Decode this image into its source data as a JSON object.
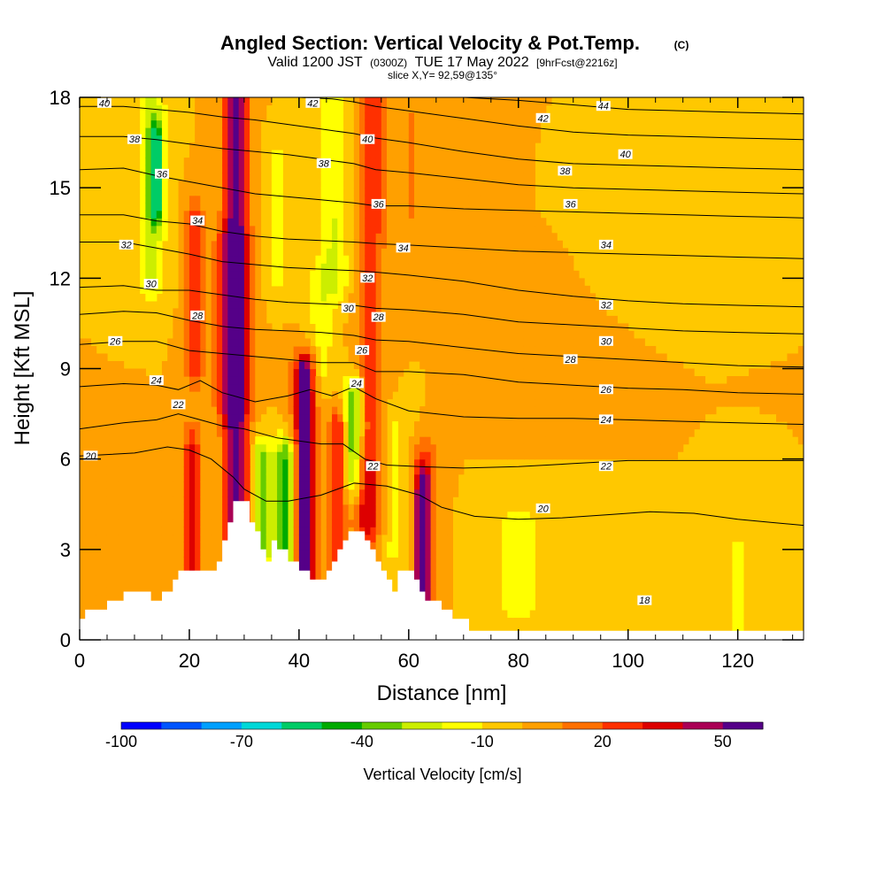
{
  "chart_data": {
    "type": "heatmap",
    "title": "Angled Section: Vertical Velocity & Pot.Temp.",
    "title_units": "(C)",
    "subtitle": {
      "valid_prefix": "Valid 1200 JST",
      "utc": "(0300Z)",
      "date": "TUE 17 May 2022",
      "fcst": "[9hrFcst@2216z]"
    },
    "slice": "slice X,Y= 92,59@135°",
    "xlabel": "Distance [nm]",
    "ylabel": "Height [Kft MSL]",
    "xlim": [
      0,
      132
    ],
    "ylim": [
      0,
      18
    ],
    "x_ticks": [
      0,
      20,
      40,
      60,
      80,
      100,
      120
    ],
    "y_ticks": [
      0,
      3,
      6,
      9,
      12,
      15,
      18
    ],
    "colorbar": {
      "title": "Vertical Velocity [cm/s]",
      "tick_labels": [
        "-100",
        "-70",
        "-40",
        "-10",
        "20",
        "50"
      ],
      "colors": [
        "#0000ff",
        "#0055ff",
        "#00a0ff",
        "#00d8d8",
        "#00cc66",
        "#00aa00",
        "#66cc00",
        "#ccee00",
        "#ffff00",
        "#ffc800",
        "#ffa000",
        "#ff7000",
        "#ff3000",
        "#dd0000",
        "#aa0055",
        "#550088"
      ]
    },
    "terrain_nm_kft": [
      [
        0,
        0.7
      ],
      [
        1,
        0.7
      ],
      [
        1,
        1
      ],
      [
        5,
        1
      ],
      [
        5,
        1.3
      ],
      [
        8,
        1.3
      ],
      [
        8,
        1.6
      ],
      [
        13,
        1.6
      ],
      [
        13,
        1.3
      ],
      [
        15,
        1.3
      ],
      [
        15,
        1.6
      ],
      [
        17,
        1.6
      ],
      [
        17,
        2
      ],
      [
        18,
        2
      ],
      [
        18,
        2.3
      ],
      [
        25,
        2.3
      ],
      [
        25,
        2.6
      ],
      [
        26,
        2.6
      ],
      [
        26,
        3.3
      ],
      [
        27,
        3.3
      ],
      [
        27,
        3.9
      ],
      [
        28,
        3.9
      ],
      [
        28,
        4.6
      ],
      [
        31,
        4.6
      ],
      [
        31,
        3.9
      ],
      [
        32,
        3.9
      ],
      [
        32,
        3.6
      ],
      [
        33,
        3.6
      ],
      [
        33,
        3
      ],
      [
        34,
        3
      ],
      [
        34,
        2.6
      ],
      [
        35,
        2.6
      ],
      [
        35,
        3.3
      ],
      [
        36,
        3.3
      ],
      [
        36,
        3
      ],
      [
        38,
        3
      ],
      [
        38,
        2.6
      ],
      [
        40,
        2.6
      ],
      [
        40,
        2.3
      ],
      [
        42,
        2.3
      ],
      [
        42,
        2
      ],
      [
        45,
        2
      ],
      [
        45,
        2.3
      ],
      [
        46,
        2.3
      ],
      [
        46,
        2.6
      ],
      [
        47,
        2.6
      ],
      [
        47,
        3
      ],
      [
        48,
        3
      ],
      [
        48,
        3.3
      ],
      [
        49,
        3.3
      ],
      [
        49,
        3.6
      ],
      [
        52,
        3.6
      ],
      [
        52,
        3.3
      ],
      [
        53,
        3.3
      ],
      [
        53,
        3
      ],
      [
        54,
        3
      ],
      [
        54,
        2.6
      ],
      [
        55,
        2.6
      ],
      [
        55,
        2.3
      ],
      [
        56,
        2.3
      ],
      [
        56,
        2
      ],
      [
        57,
        2
      ],
      [
        57,
        1.6
      ],
      [
        58,
        1.6
      ],
      [
        58,
        2.3
      ],
      [
        61,
        2.3
      ],
      [
        61,
        2
      ],
      [
        62,
        2
      ],
      [
        62,
        1.6
      ],
      [
        63,
        1.6
      ],
      [
        63,
        1.3
      ],
      [
        66,
        1.3
      ],
      [
        66,
        1
      ],
      [
        68,
        1
      ],
      [
        68,
        0.7
      ],
      [
        71,
        0.7
      ],
      [
        71,
        0.3
      ],
      [
        132,
        0.3
      ]
    ],
    "theta_contours_c": [
      {
        "level": 20,
        "label": "20",
        "x": [
          0,
          10,
          16,
          20,
          24,
          28,
          30,
          34,
          38,
          44,
          50,
          56,
          62,
          66,
          72,
          80,
          88,
          96,
          104,
          112,
          120,
          126,
          132
        ],
        "y": [
          6.1,
          6.2,
          6.4,
          6.3,
          6.0,
          5.4,
          5.0,
          4.6,
          4.6,
          4.8,
          5.2,
          5.1,
          4.8,
          4.4,
          4.1,
          4.0,
          4.05,
          4.15,
          4.25,
          4.2,
          4.0,
          3.9,
          3.8
        ]
      },
      {
        "level": 22,
        "label": "22",
        "x": [
          0,
          8,
          14,
          18,
          22,
          26,
          30,
          36,
          40,
          44,
          48,
          52,
          56,
          62,
          70,
          80,
          90,
          100,
          110,
          120,
          132
        ],
        "y": [
          7.0,
          7.2,
          7.3,
          7.5,
          7.3,
          7.1,
          7.0,
          6.7,
          6.6,
          6.5,
          6.5,
          6.0,
          5.8,
          5.75,
          5.7,
          5.75,
          5.85,
          5.95,
          5.95,
          5.95,
          5.95
        ]
      },
      {
        "level": 24,
        "label": "24",
        "x": [
          0,
          8,
          14,
          18,
          22,
          26,
          32,
          38,
          42,
          46,
          50,
          54,
          60,
          70,
          80,
          90,
          100,
          110,
          120,
          132
        ],
        "y": [
          8.4,
          8.5,
          8.45,
          8.3,
          8.6,
          8.2,
          7.9,
          8.1,
          8.3,
          8.1,
          8.4,
          8.0,
          7.6,
          7.4,
          7.35,
          7.35,
          7.3,
          7.25,
          7.2,
          7.15
        ]
      },
      {
        "level": 26,
        "label": "26",
        "x": [
          0,
          8,
          14,
          20,
          26,
          32,
          38,
          44,
          50,
          54,
          60,
          70,
          80,
          90,
          100,
          110,
          120,
          132
        ],
        "y": [
          9.8,
          9.9,
          9.9,
          9.6,
          9.5,
          9.4,
          9.3,
          9.2,
          9.2,
          8.9,
          8.9,
          8.8,
          8.55,
          8.45,
          8.35,
          8.3,
          8.2,
          8.15
        ]
      },
      {
        "level": 28,
        "label": "28",
        "x": [
          0,
          8,
          14,
          20,
          26,
          32,
          38,
          44,
          50,
          54,
          60,
          70,
          80,
          90,
          100,
          110,
          120,
          132
        ],
        "y": [
          10.8,
          10.9,
          10.85,
          10.6,
          10.4,
          10.3,
          10.25,
          10.2,
          10.1,
          9.95,
          9.9,
          9.7,
          9.5,
          9.4,
          9.3,
          9.2,
          9.1,
          9.05
        ]
      },
      {
        "level": 30,
        "label": "30",
        "x": [
          0,
          8,
          14,
          20,
          26,
          32,
          38,
          44,
          50,
          54,
          60,
          70,
          80,
          90,
          100,
          110,
          120,
          132
        ],
        "y": [
          11.7,
          11.75,
          11.6,
          11.6,
          11.45,
          11.3,
          11.2,
          11.15,
          11.1,
          11.0,
          10.95,
          10.8,
          10.55,
          10.45,
          10.35,
          10.25,
          10.2,
          10.15
        ]
      },
      {
        "level": 32,
        "label": "32",
        "x": [
          0,
          8,
          14,
          20,
          26,
          32,
          38,
          44,
          50,
          54,
          60,
          70,
          80,
          90,
          100,
          110,
          120,
          132
        ],
        "y": [
          13.2,
          13.2,
          13.0,
          12.8,
          12.55,
          12.45,
          12.35,
          12.3,
          12.25,
          12.2,
          12.1,
          11.9,
          11.6,
          11.4,
          11.25,
          11.15,
          11.1,
          11.05
        ]
      },
      {
        "level": 34,
        "label": "34",
        "x": [
          0,
          8,
          14,
          20,
          26,
          32,
          38,
          44,
          50,
          54,
          60,
          70,
          80,
          90,
          100,
          110,
          120,
          132
        ],
        "y": [
          14.1,
          14.1,
          13.9,
          13.8,
          13.55,
          13.4,
          13.3,
          13.25,
          13.2,
          13.15,
          13.1,
          13.0,
          12.9,
          12.85,
          12.8,
          12.75,
          12.7,
          12.65
        ]
      },
      {
        "level": 36,
        "label": "36",
        "x": [
          0,
          8,
          14,
          20,
          26,
          32,
          38,
          44,
          50,
          54,
          60,
          70,
          80,
          90,
          100,
          110,
          120,
          132
        ],
        "y": [
          15.6,
          15.65,
          15.4,
          15.2,
          15.0,
          14.8,
          14.7,
          14.6,
          14.5,
          14.4,
          14.4,
          14.3,
          14.25,
          14.2,
          14.15,
          14.1,
          14.05,
          14.0
        ]
      },
      {
        "level": 38,
        "label": "38",
        "x": [
          0,
          8,
          14,
          20,
          26,
          32,
          38,
          44,
          50,
          54,
          60,
          70,
          80,
          90,
          100,
          110,
          120,
          132
        ],
        "y": [
          16.7,
          16.7,
          16.6,
          16.45,
          16.3,
          16.2,
          16.1,
          15.95,
          15.8,
          15.6,
          15.5,
          15.3,
          15.1,
          15.0,
          14.95,
          14.9,
          14.85,
          14.8
        ]
      },
      {
        "level": 40,
        "label": "40",
        "x": [
          0,
          8,
          14,
          20,
          26,
          32,
          38,
          44,
          50,
          54,
          60,
          70,
          80,
          90,
          100,
          110,
          120,
          132
        ],
        "y": [
          17.7,
          17.7,
          17.6,
          17.5,
          17.35,
          17.25,
          17.1,
          16.95,
          16.8,
          16.65,
          16.5,
          16.2,
          15.95,
          15.8,
          15.75,
          15.7,
          15.65,
          15.6
        ]
      },
      {
        "level": 42,
        "label": "42",
        "x": [
          40,
          46,
          50,
          54,
          60,
          70,
          80,
          90,
          100,
          110,
          120,
          132
        ],
        "y": [
          18.0,
          17.95,
          17.85,
          17.7,
          17.55,
          17.3,
          17.05,
          16.85,
          16.75,
          16.7,
          16.65,
          16.6
        ]
      },
      {
        "level": 44,
        "label": "44",
        "x": [
          70,
          80,
          90,
          100,
          110,
          120,
          132
        ],
        "y": [
          18.0,
          17.9,
          17.75,
          17.6,
          17.55,
          17.5,
          17.45
        ]
      }
    ],
    "contour_labels": [
      {
        "text": "40",
        "x": 4.5,
        "y": 17.8
      },
      {
        "text": "42",
        "x": 42.5,
        "y": 17.8
      },
      {
        "text": "44",
        "x": 95.5,
        "y": 17.7
      },
      {
        "text": "42",
        "x": 84.5,
        "y": 17.3
      },
      {
        "text": "38",
        "x": 10,
        "y": 16.6
      },
      {
        "text": "40",
        "x": 52.5,
        "y": 16.6
      },
      {
        "text": "40",
        "x": 99.5,
        "y": 16.1
      },
      {
        "text": "38",
        "x": 44.5,
        "y": 15.8
      },
      {
        "text": "38",
        "x": 88.5,
        "y": 15.55
      },
      {
        "text": "36",
        "x": 15,
        "y": 15.45
      },
      {
        "text": "36",
        "x": 54.5,
        "y": 14.45
      },
      {
        "text": "36",
        "x": 89.5,
        "y": 14.45
      },
      {
        "text": "34",
        "x": 21.5,
        "y": 13.9
      },
      {
        "text": "32",
        "x": 8.5,
        "y": 13.1
      },
      {
        "text": "34",
        "x": 59,
        "y": 13.0
      },
      {
        "text": "34",
        "x": 96,
        "y": 13.1
      },
      {
        "text": "30",
        "x": 13,
        "y": 11.8
      },
      {
        "text": "32",
        "x": 52.5,
        "y": 12.0
      },
      {
        "text": "30",
        "x": 49,
        "y": 11.0
      },
      {
        "text": "32",
        "x": 96,
        "y": 11.1
      },
      {
        "text": "28",
        "x": 21.5,
        "y": 10.75
      },
      {
        "text": "28",
        "x": 54.5,
        "y": 10.7
      },
      {
        "text": "26",
        "x": 6.5,
        "y": 9.9
      },
      {
        "text": "26",
        "x": 51.5,
        "y": 9.6
      },
      {
        "text": "30",
        "x": 96,
        "y": 9.9
      },
      {
        "text": "28",
        "x": 89.5,
        "y": 9.3
      },
      {
        "text": "24",
        "x": 14,
        "y": 8.6
      },
      {
        "text": "24",
        "x": 50.5,
        "y": 8.5
      },
      {
        "text": "26",
        "x": 96,
        "y": 8.3
      },
      {
        "text": "22",
        "x": 18,
        "y": 7.8
      },
      {
        "text": "24",
        "x": 96,
        "y": 7.3
      },
      {
        "text": "20",
        "x": 2,
        "y": 6.1
      },
      {
        "text": "22",
        "x": 53.5,
        "y": 5.75
      },
      {
        "text": "22",
        "x": 96,
        "y": 5.75
      },
      {
        "text": "20",
        "x": 84.5,
        "y": 4.35
      },
      {
        "text": "18",
        "x": 103,
        "y": 1.3
      }
    ],
    "shading": {
      "base": 0,
      "features": [
        {
          "x": 28.5,
          "y0": 0,
          "y1": 18,
          "w": 2.2,
          "v": 55
        },
        {
          "x": 27.5,
          "y0": 8,
          "y1": 13,
          "w": 3,
          "v": 25
        },
        {
          "x": 53,
          "y0": 4,
          "y1": 18,
          "w": 2.4,
          "v": 28
        },
        {
          "x": 62.5,
          "y0": 0,
          "y1": 5,
          "w": 1.2,
          "v": 55
        },
        {
          "x": 63,
          "y0": 1,
          "y1": 6,
          "w": 2.5,
          "v": 20
        },
        {
          "x": 41,
          "y0": 2,
          "y1": 8.5,
          "w": 1.3,
          "v": 60
        },
        {
          "x": 41,
          "y0": 2,
          "y1": 9,
          "w": 2.5,
          "v": 28
        },
        {
          "x": 47,
          "y0": 2,
          "y1": 7,
          "w": 1.5,
          "v": 30
        },
        {
          "x": 20.5,
          "y0": 2,
          "y1": 6.5,
          "w": 1.6,
          "v": 30
        },
        {
          "x": 21,
          "y0": 9,
          "y1": 14,
          "w": 1.6,
          "v": 25
        },
        {
          "x": 52,
          "y0": 2.5,
          "y1": 5.5,
          "w": 2.5,
          "v": 15
        },
        {
          "x": 13,
          "y0": 12,
          "y1": 18,
          "w": 2.5,
          "v": -25
        },
        {
          "x": 14,
          "y0": 14.5,
          "y1": 16.5,
          "w": 1.2,
          "v": -40
        },
        {
          "x": 37.5,
          "y0": 2,
          "y1": 6,
          "w": 2.2,
          "v": -45
        },
        {
          "x": 50,
          "y0": 5.5,
          "y1": 8,
          "w": 1.8,
          "v": -40
        },
        {
          "x": 33,
          "y0": 3,
          "y1": 6,
          "w": 1.6,
          "v": -35
        },
        {
          "x": 46.5,
          "y0": 12,
          "y1": 18,
          "w": 2.5,
          "v": -20
        },
        {
          "x": 44,
          "y0": 9,
          "y1": 12,
          "w": 2.5,
          "v": -15
        },
        {
          "x": 36,
          "y0": 12,
          "y1": 16,
          "w": 2,
          "v": -12
        },
        {
          "x": 57,
          "y0": 3,
          "y1": 7,
          "w": 3,
          "v": -12
        },
        {
          "x": 80,
          "y0": 1,
          "y1": 4,
          "w": 6,
          "v": -12
        },
        {
          "x": 102,
          "y0": 13,
          "y1": 16,
          "w": 7,
          "v": -10
        },
        {
          "x": 120,
          "y0": 0,
          "y1": 3,
          "w": 3,
          "v": -12
        },
        {
          "x": 70,
          "y0": 12,
          "y1": 17,
          "w": 5,
          "v": 8
        },
        {
          "x": 80,
          "y0": 8,
          "y1": 12,
          "w": 6,
          "v": 8
        },
        {
          "x": 60,
          "y0": 14,
          "y1": 18,
          "w": 4,
          "v": 10
        },
        {
          "x": 8,
          "y0": 2,
          "y1": 6,
          "w": 4,
          "v": 5
        }
      ]
    }
  }
}
